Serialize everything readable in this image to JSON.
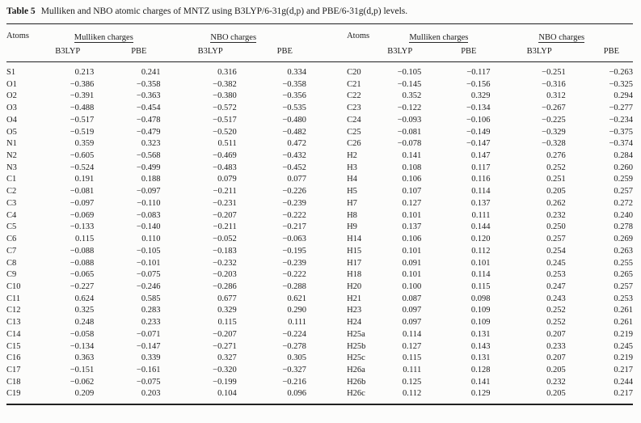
{
  "caption": {
    "label": "Table 5",
    "text": "Mulliken and NBO atomic charges of MNTZ using B3LYP/6-31g(d,p) and PBE/6-31g(d,p) levels."
  },
  "header": {
    "atoms": "Atoms",
    "mulliken": "Mulliken charges",
    "nbo": "NBO charges",
    "method_b3lyp": "B3LYP",
    "method_pbe": "PBE"
  },
  "rows_left": [
    {
      "atom": "S1",
      "values": [
        "0.213",
        "0.241",
        "0.316",
        "0.334"
      ]
    },
    {
      "atom": "O1",
      "values": [
        "−0.386",
        "−0.358",
        "−0.382",
        "−0.358"
      ]
    },
    {
      "atom": "O2",
      "values": [
        "−0.391",
        "−0.363",
        "−0.380",
        "−0.356"
      ]
    },
    {
      "atom": "O3",
      "values": [
        "−0.488",
        "−0.454",
        "−0.572",
        "−0.535"
      ]
    },
    {
      "atom": "O4",
      "values": [
        "−0.517",
        "−0.478",
        "−0.517",
        "−0.480"
      ]
    },
    {
      "atom": "O5",
      "values": [
        "−0.519",
        "−0.479",
        "−0.520",
        "−0.482"
      ]
    },
    {
      "atom": "N1",
      "values": [
        "0.359",
        "0.323",
        "0.511",
        "0.472"
      ]
    },
    {
      "atom": "N2",
      "values": [
        "−0.605",
        "−0.568",
        "−0.469",
        "−0.432"
      ]
    },
    {
      "atom": "N3",
      "values": [
        "−0.524",
        "−0.499",
        "−0.483",
        "−0.452"
      ]
    },
    {
      "atom": "C1",
      "values": [
        "0.191",
        "0.188",
        "0.079",
        "0.077"
      ]
    },
    {
      "atom": "C2",
      "values": [
        "−0.081",
        "−0.097",
        "−0.211",
        "−0.226"
      ]
    },
    {
      "atom": "C3",
      "values": [
        "−0.097",
        "−0.110",
        "−0.231",
        "−0.239"
      ]
    },
    {
      "atom": "C4",
      "values": [
        "−0.069",
        "−0.083",
        "−0.207",
        "−0.222"
      ]
    },
    {
      "atom": "C5",
      "values": [
        "−0.133",
        "−0.140",
        "−0.211",
        "−0.217"
      ]
    },
    {
      "atom": "C6",
      "values": [
        "0.115",
        "0.110",
        "−0.052",
        "−0.063"
      ]
    },
    {
      "atom": "C7",
      "values": [
        "−0.088",
        "−0.105",
        "−0.183",
        "−0.195"
      ]
    },
    {
      "atom": "C8",
      "values": [
        "−0.088",
        "−0.101",
        "−0.232",
        "−0.239"
      ]
    },
    {
      "atom": "C9",
      "values": [
        "−0.065",
        "−0.075",
        "−0.203",
        "−0.222"
      ]
    },
    {
      "atom": "C10",
      "values": [
        "−0.227",
        "−0.246",
        "−0.286",
        "−0.288"
      ]
    },
    {
      "atom": "C11",
      "values": [
        "0.624",
        "0.585",
        "0.677",
        "0.621"
      ]
    },
    {
      "atom": "C12",
      "values": [
        "0.325",
        "0.283",
        "0.329",
        "0.290"
      ]
    },
    {
      "atom": "C13",
      "values": [
        "0.248",
        "0.233",
        "0.115",
        "0.111"
      ]
    },
    {
      "atom": "C14",
      "values": [
        "−0.058",
        "−0.071",
        "−0.207",
        "−0.224"
      ]
    },
    {
      "atom": "C15",
      "values": [
        "−0.134",
        "−0.147",
        "−0.271",
        "−0.278"
      ]
    },
    {
      "atom": "C16",
      "values": [
        "0.363",
        "0.339",
        "0.327",
        "0.305"
      ]
    },
    {
      "atom": "C17",
      "values": [
        "−0.151",
        "−0.161",
        "−0.320",
        "−0.327"
      ]
    },
    {
      "atom": "C18",
      "values": [
        "−0.062",
        "−0.075",
        "−0.199",
        "−0.216"
      ]
    },
    {
      "atom": "C19",
      "values": [
        "0.209",
        "0.203",
        "0.104",
        "0.096"
      ]
    }
  ],
  "rows_right": [
    {
      "atom": "C20",
      "values": [
        "−0.105",
        "−0.117",
        "−0.251",
        "−0.263"
      ]
    },
    {
      "atom": "C21",
      "values": [
        "−0.145",
        "−0.156",
        "−0.316",
        "−0.325"
      ]
    },
    {
      "atom": "C22",
      "values": [
        "0.352",
        "0.329",
        "0.312",
        "0.294"
      ]
    },
    {
      "atom": "C23",
      "values": [
        "−0.122",
        "−0.134",
        "−0.267",
        "−0.277"
      ]
    },
    {
      "atom": "C24",
      "values": [
        "−0.093",
        "−0.106",
        "−0.225",
        "−0.234"
      ]
    },
    {
      "atom": "C25",
      "values": [
        "−0.081",
        "−0.149",
        "−0.329",
        "−0.375"
      ]
    },
    {
      "atom": "C26",
      "values": [
        "−0.078",
        "−0.147",
        "−0.328",
        "−0.374"
      ]
    },
    {
      "atom": "H2",
      "values": [
        "0.141",
        "0.147",
        "0.276",
        "0.284"
      ]
    },
    {
      "atom": "H3",
      "values": [
        "0.108",
        "0.117",
        "0.252",
        "0.260"
      ]
    },
    {
      "atom": "H4",
      "values": [
        "0.106",
        "0.116",
        "0.251",
        "0.259"
      ]
    },
    {
      "atom": "H5",
      "values": [
        "0.107",
        "0.114",
        "0.205",
        "0.257"
      ]
    },
    {
      "atom": "H7",
      "values": [
        "0.127",
        "0.137",
        "0.262",
        "0.272"
      ]
    },
    {
      "atom": "H8",
      "values": [
        "0.101",
        "0.111",
        "0.232",
        "0.240"
      ]
    },
    {
      "atom": "H9",
      "values": [
        "0.137",
        "0.144",
        "0.250",
        "0.278"
      ]
    },
    {
      "atom": "H14",
      "values": [
        "0.106",
        "0.120",
        "0.257",
        "0.269"
      ]
    },
    {
      "atom": "H15",
      "values": [
        "0.101",
        "0.112",
        "0.254",
        "0.263"
      ]
    },
    {
      "atom": "H17",
      "values": [
        "0.091",
        "0.101",
        "0.245",
        "0.255"
      ]
    },
    {
      "atom": "H18",
      "values": [
        "0.101",
        "0.114",
        "0.253",
        "0.265"
      ]
    },
    {
      "atom": "H20",
      "values": [
        "0.100",
        "0.115",
        "0.247",
        "0.257"
      ]
    },
    {
      "atom": "H21",
      "values": [
        "0.087",
        "0.098",
        "0.243",
        "0.253"
      ]
    },
    {
      "atom": "H23",
      "values": [
        "0.097",
        "0.109",
        "0.252",
        "0.261"
      ]
    },
    {
      "atom": "H24",
      "values": [
        "0.097",
        "0.109",
        "0.252",
        "0.261"
      ]
    },
    {
      "atom": "H25a",
      "values": [
        "0.114",
        "0.131",
        "0.207",
        "0.219"
      ]
    },
    {
      "atom": "H25b",
      "values": [
        "0.127",
        "0.143",
        "0.233",
        "0.245"
      ]
    },
    {
      "atom": "H25c",
      "values": [
        "0.115",
        "0.131",
        "0.207",
        "0.219"
      ]
    },
    {
      "atom": "H26a",
      "values": [
        "0.111",
        "0.128",
        "0.205",
        "0.217"
      ]
    },
    {
      "atom": "H26b",
      "values": [
        "0.125",
        "0.141",
        "0.232",
        "0.244"
      ]
    },
    {
      "atom": "H26c",
      "values": [
        "0.112",
        "0.129",
        "0.205",
        "0.217"
      ]
    }
  ]
}
